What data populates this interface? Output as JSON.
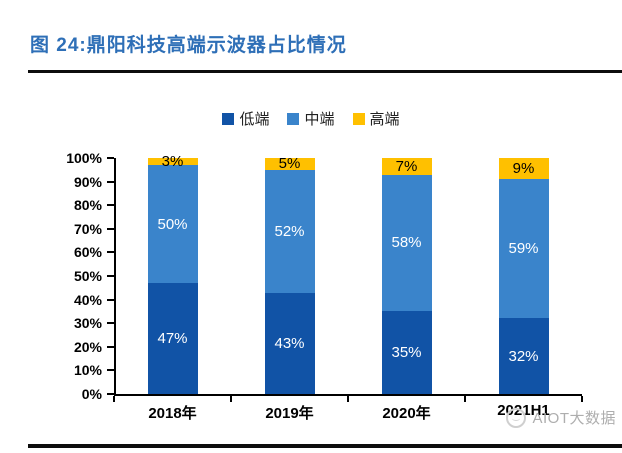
{
  "figure": {
    "title": "图 24:鼎阳科技高端示波器占比情况",
    "watermark": "AIOT大数据"
  },
  "colors": {
    "title_blue": "#2E6FB7",
    "rule_black": "#0d0d0d",
    "axis_black": "#000000",
    "watermark_gray": "#aeaeae"
  },
  "chart_data": {
    "type": "bar",
    "subtype": "stacked-100-percent",
    "title": "鼎阳科技高端示波器占比情况",
    "categories": [
      "2018年",
      "2019年",
      "2020年",
      "2021H1"
    ],
    "series": [
      {
        "name": "低端",
        "color": "#1153A6",
        "label_color": "#ffffff",
        "values": [
          47,
          43,
          35,
          32
        ]
      },
      {
        "name": "中端",
        "color": "#3A84CB",
        "label_color": "#ffffff",
        "values": [
          50,
          52,
          58,
          59
        ]
      },
      {
        "name": "高端",
        "color": "#FFC000",
        "label_color": "#000000",
        "values": [
          3,
          5,
          7,
          9
        ]
      }
    ],
    "value_suffix": "%",
    "ylim": [
      0,
      100
    ],
    "yticks": [
      "0%",
      "10%",
      "20%",
      "30%",
      "40%",
      "50%",
      "60%",
      "70%",
      "80%",
      "90%",
      "100%"
    ],
    "xlabel": "",
    "ylabel": "",
    "grid": false,
    "legend_position": "top-center"
  }
}
